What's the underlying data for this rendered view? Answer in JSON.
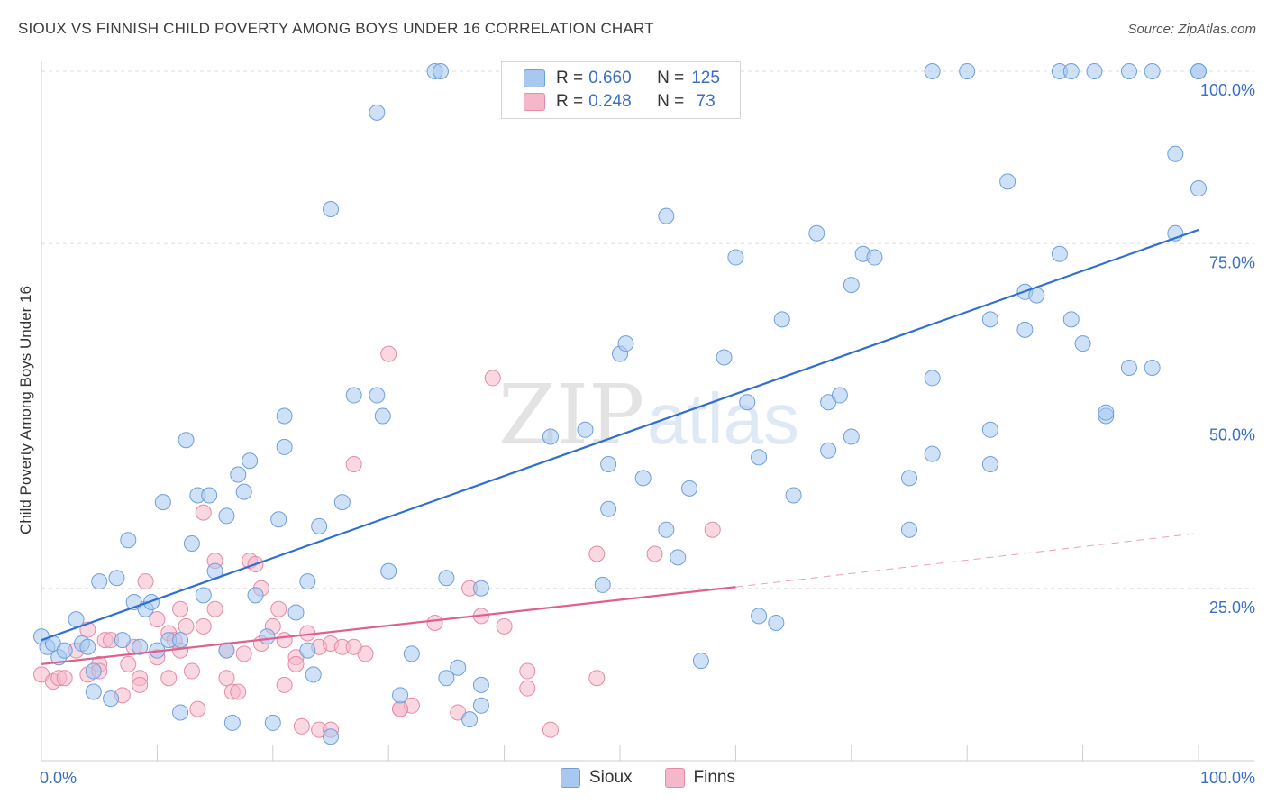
{
  "title": "SIOUX VS FINNISH CHILD POVERTY AMONG BOYS UNDER 16 CORRELATION CHART",
  "source": "Source: ZipAtlas.com",
  "watermark": {
    "zip": "ZIP",
    "atlas": "atlas"
  },
  "colors": {
    "sioux_fill": "#a8c8f0",
    "sioux_stroke": "#6e9fdb",
    "sioux_line": "#2f6fd1",
    "finns_fill": "#f5b8cb",
    "finns_stroke": "#e58aa6",
    "finns_line": "#e0608d",
    "axis_text": "#3a6fc4",
    "grid": "#dddddd"
  },
  "legend": {
    "rows": [
      {
        "label": "R =",
        "r": "0.660",
        "n_label": "N =",
        "n": "125",
        "series": "sioux"
      },
      {
        "label": "R =",
        "r": "0.248",
        "n_label": "N =",
        "n": " 73",
        "series": "finns"
      }
    ],
    "bottom": [
      "Sioux",
      "Finns"
    ]
  },
  "chart_data": {
    "type": "scatter",
    "title": "SIOUX VS FINNISH CHILD POVERTY AMONG BOYS UNDER 16 CORRELATION CHART",
    "xlabel": "",
    "ylabel": "Child Poverty Among Boys Under 16",
    "xlim": [
      0,
      100
    ],
    "ylim": [
      0,
      100
    ],
    "x_tick_labels": [
      "0.0%",
      "100.0%"
    ],
    "y_tick_labels": [
      {
        "value": 25,
        "label": "25.0%"
      },
      {
        "value": 50,
        "label": "50.0%"
      },
      {
        "value": 75,
        "label": "75.0%"
      },
      {
        "value": 100,
        "label": "100.0%"
      }
    ],
    "grid": true,
    "legend_position": "top-center",
    "series": [
      {
        "name": "Sioux",
        "r": 0.66,
        "n": 125,
        "trend": {
          "x": [
            0,
            100
          ],
          "y": [
            17.5,
            77.0
          ],
          "style": "solid"
        },
        "points": [
          [
            0,
            18
          ],
          [
            0.5,
            16.5
          ],
          [
            1,
            17
          ],
          [
            1.5,
            15
          ],
          [
            2,
            16
          ],
          [
            3,
            20.5
          ],
          [
            3.5,
            17
          ],
          [
            4,
            16.5
          ],
          [
            4.5,
            10
          ],
          [
            4.5,
            13
          ],
          [
            5,
            26
          ],
          [
            6,
            9
          ],
          [
            6.5,
            26.5
          ],
          [
            7,
            17.5
          ],
          [
            7.5,
            32
          ],
          [
            8,
            23
          ],
          [
            8.5,
            16.5
          ],
          [
            9,
            22
          ],
          [
            9.5,
            23
          ],
          [
            10,
            16
          ],
          [
            10.5,
            37.5
          ],
          [
            11,
            17.5
          ],
          [
            12,
            17.5
          ],
          [
            12,
            7
          ],
          [
            12.5,
            46.5
          ],
          [
            13,
            31.5
          ],
          [
            13.5,
            38.5
          ],
          [
            14,
            24
          ],
          [
            14.5,
            38.5
          ],
          [
            15,
            27.5
          ],
          [
            16,
            16
          ],
          [
            16,
            35.5
          ],
          [
            16.5,
            5.5
          ],
          [
            17,
            41.5
          ],
          [
            17.5,
            39
          ],
          [
            18,
            43.5
          ],
          [
            18.5,
            24
          ],
          [
            19.5,
            18
          ],
          [
            20,
            5.5
          ],
          [
            20.5,
            35
          ],
          [
            21,
            45.5
          ],
          [
            21,
            50
          ],
          [
            22,
            21.5
          ],
          [
            23,
            16
          ],
          [
            23,
            26
          ],
          [
            23.5,
            12.5
          ],
          [
            24,
            34
          ],
          [
            25,
            3.5
          ],
          [
            25,
            80
          ],
          [
            26,
            37.5
          ],
          [
            27,
            53
          ],
          [
            29,
            94
          ],
          [
            29,
            53
          ],
          [
            29.5,
            50
          ],
          [
            30,
            27.5
          ],
          [
            31,
            9.5
          ],
          [
            32,
            15.5
          ],
          [
            34,
            100
          ],
          [
            34.5,
            100
          ],
          [
            35,
            12
          ],
          [
            35,
            26.5
          ],
          [
            36,
            13.5
          ],
          [
            37,
            6
          ],
          [
            38,
            25
          ],
          [
            38,
            11
          ],
          [
            38,
            8
          ],
          [
            44,
            47
          ],
          [
            47,
            48
          ],
          [
            48.5,
            25.5
          ],
          [
            49,
            36.5
          ],
          [
            49,
            43
          ],
          [
            50,
            59
          ],
          [
            50.5,
            60.5
          ],
          [
            52,
            41
          ],
          [
            54,
            79
          ],
          [
            54,
            33.5
          ],
          [
            55,
            29.5
          ],
          [
            56,
            39.5
          ],
          [
            57,
            14.5
          ],
          [
            59,
            58.5
          ],
          [
            60,
            73
          ],
          [
            61,
            52
          ],
          [
            62,
            21
          ],
          [
            62,
            44
          ],
          [
            63.5,
            20
          ],
          [
            64,
            64
          ],
          [
            65,
            38.5
          ],
          [
            67,
            76.5
          ],
          [
            68,
            52
          ],
          [
            68,
            45
          ],
          [
            69,
            53
          ],
          [
            70,
            69
          ],
          [
            70,
            47
          ],
          [
            71,
            73.5
          ],
          [
            72,
            73
          ],
          [
            75,
            41
          ],
          [
            75,
            33.5
          ],
          [
            77,
            44.5
          ],
          [
            77,
            55.5
          ],
          [
            77,
            100
          ],
          [
            80,
            100
          ],
          [
            82,
            64
          ],
          [
            82,
            48
          ],
          [
            82,
            43
          ],
          [
            83.5,
            84
          ],
          [
            85,
            68
          ],
          [
            85,
            62.5
          ],
          [
            86,
            67.5
          ],
          [
            88,
            73.5
          ],
          [
            88,
            100
          ],
          [
            89,
            100
          ],
          [
            89,
            64
          ],
          [
            90,
            60.5
          ],
          [
            91,
            100
          ],
          [
            92,
            50
          ],
          [
            92,
            50.5
          ],
          [
            94,
            57
          ],
          [
            94,
            100
          ],
          [
            96,
            57
          ],
          [
            96,
            100
          ],
          [
            98,
            88
          ],
          [
            98,
            76.5
          ],
          [
            100,
            83
          ],
          [
            100,
            100
          ],
          [
            100,
            100
          ]
        ]
      },
      {
        "name": "Finns",
        "r": 0.248,
        "n": 73,
        "trend": {
          "x": [
            0,
            60,
            100
          ],
          "y": [
            14,
            25.2,
            33
          ],
          "style": "solid-then-dashed"
        },
        "points": [
          [
            0,
            12.5
          ],
          [
            1,
            11.5
          ],
          [
            1.5,
            12
          ],
          [
            2,
            12
          ],
          [
            3,
            16
          ],
          [
            4,
            12.5
          ],
          [
            4,
            19
          ],
          [
            5,
            14
          ],
          [
            5,
            13
          ],
          [
            5.5,
            17.5
          ],
          [
            6,
            17.5
          ],
          [
            7,
            9.5
          ],
          [
            7.5,
            14
          ],
          [
            8,
            16.5
          ],
          [
            8.5,
            12
          ],
          [
            8.5,
            11
          ],
          [
            9,
            26
          ],
          [
            10,
            20.5
          ],
          [
            10,
            15
          ],
          [
            11,
            18.5
          ],
          [
            11,
            12
          ],
          [
            11.5,
            17.5
          ],
          [
            12,
            16
          ],
          [
            12,
            22
          ],
          [
            12.5,
            19.5
          ],
          [
            13,
            13
          ],
          [
            13.5,
            7.5
          ],
          [
            14,
            19.5
          ],
          [
            14,
            36
          ],
          [
            15,
            29
          ],
          [
            15,
            22
          ],
          [
            16,
            16
          ],
          [
            16,
            12
          ],
          [
            16.5,
            10
          ],
          [
            17,
            10
          ],
          [
            17.5,
            15.5
          ],
          [
            18,
            29
          ],
          [
            18.5,
            28.5
          ],
          [
            19,
            25
          ],
          [
            19,
            17
          ],
          [
            20,
            19.5
          ],
          [
            20.5,
            22
          ],
          [
            21,
            17.5
          ],
          [
            21,
            11
          ],
          [
            22,
            15
          ],
          [
            22,
            14
          ],
          [
            22.5,
            5
          ],
          [
            23,
            18.5
          ],
          [
            24,
            16.5
          ],
          [
            24,
            4.5
          ],
          [
            25,
            17
          ],
          [
            25,
            4.5
          ],
          [
            26,
            16.5
          ],
          [
            27,
            43
          ],
          [
            28,
            15.5
          ],
          [
            30,
            59
          ],
          [
            31,
            7.5
          ],
          [
            32,
            8
          ],
          [
            34,
            20
          ],
          [
            36,
            7
          ],
          [
            37,
            25
          ],
          [
            38,
            21
          ],
          [
            39,
            55.5
          ],
          [
            40,
            19.5
          ],
          [
            42,
            10.5
          ],
          [
            42,
            13
          ],
          [
            44,
            4.5
          ],
          [
            48,
            30
          ],
          [
            48,
            12
          ],
          [
            53,
            30
          ],
          [
            58,
            33.5
          ],
          [
            31,
            7.5
          ],
          [
            27,
            16.5
          ]
        ]
      }
    ]
  }
}
